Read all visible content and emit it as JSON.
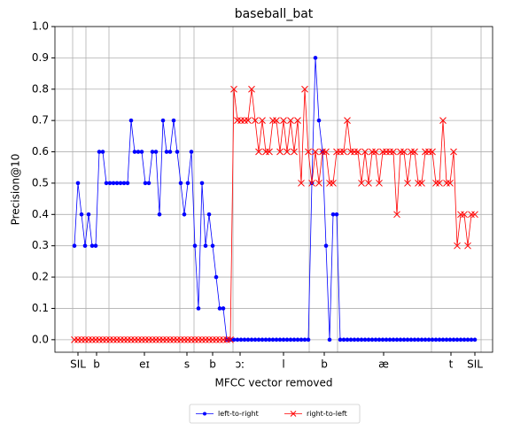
{
  "chart_data": {
    "type": "line",
    "title": "baseball_bat",
    "xlabel": "MFCC vector removed",
    "ylabel": "Precision@10",
    "x": [
      0,
      1,
      2,
      3,
      4,
      5,
      6,
      7,
      8,
      9,
      10,
      11,
      12,
      13,
      14,
      15,
      16,
      17,
      18,
      19,
      20,
      21,
      22,
      23,
      24,
      25,
      26,
      27,
      28,
      29,
      30,
      31,
      32,
      33,
      34,
      35,
      36,
      37,
      38,
      39,
      40,
      41,
      42,
      43,
      44,
      45,
      46,
      47,
      48,
      49,
      50,
      51,
      52,
      53,
      54,
      55,
      56,
      57,
      58,
      59,
      60,
      61,
      62,
      63,
      64,
      65,
      66,
      67,
      68,
      69,
      70,
      71,
      72,
      73,
      74,
      75,
      76,
      77,
      78,
      79,
      80,
      81,
      82,
      83,
      84,
      85,
      86,
      87,
      88,
      89,
      90,
      91,
      92,
      93,
      94,
      95,
      96,
      97,
      98,
      99,
      100,
      101,
      102,
      103,
      104,
      105,
      106,
      107,
      108,
      109,
      110,
      111,
      112,
      113
    ],
    "series": [
      {
        "name": "left-to-right",
        "color": "#0000ff",
        "marker": "dot",
        "values": [
          0.3,
          0.5,
          0.4,
          0.3,
          0.4,
          0.3,
          0.3,
          0.6,
          0.6,
          0.5,
          0.5,
          0.5,
          0.5,
          0.5,
          0.5,
          0.5,
          0.7,
          0.6,
          0.6,
          0.6,
          0.5,
          0.5,
          0.6,
          0.6,
          0.4,
          0.7,
          0.6,
          0.6,
          0.7,
          0.6,
          0.5,
          0.4,
          0.5,
          0.6,
          0.3,
          0.1,
          0.5,
          0.3,
          0.4,
          0.3,
          0.2,
          0.1,
          0.1,
          0,
          0,
          0,
          0,
          0,
          0,
          0,
          0,
          0,
          0,
          0,
          0,
          0,
          0,
          0,
          0,
          0,
          0,
          0,
          0,
          0,
          0,
          0,
          0,
          0.5,
          0.9,
          0.7,
          0.6,
          0.3,
          0,
          0.4,
          0.4,
          0,
          0,
          0,
          0,
          0,
          0,
          0,
          0,
          0,
          0,
          0,
          0,
          0,
          0,
          0,
          0,
          0,
          0,
          0,
          0,
          0,
          0,
          0,
          0,
          0,
          0,
          0,
          0,
          0,
          0,
          0,
          0,
          0,
          0,
          0,
          0,
          0,
          0,
          0
        ]
      },
      {
        "name": "right-to-left",
        "color": "#ff0000",
        "marker": "x",
        "values": [
          0,
          0,
          0,
          0,
          0,
          0,
          0,
          0,
          0,
          0,
          0,
          0,
          0,
          0,
          0,
          0,
          0,
          0,
          0,
          0,
          0,
          0,
          0,
          0,
          0,
          0,
          0,
          0,
          0,
          0,
          0,
          0,
          0,
          0,
          0,
          0,
          0,
          0,
          0,
          0,
          0,
          0,
          0,
          0,
          0,
          0.8,
          0.7,
          0.7,
          0.7,
          0.7,
          0.8,
          0.7,
          0.6,
          0.7,
          0.6,
          0.6,
          0.7,
          0.7,
          0.6,
          0.7,
          0.6,
          0.7,
          0.6,
          0.7,
          0.5,
          0.8,
          0.6,
          0.5,
          0.6,
          0.5,
          0.6,
          0.6,
          0.5,
          0.5,
          0.6,
          0.6,
          0.6,
          0.7,
          0.6,
          0.6,
          0.6,
          0.5,
          0.6,
          0.5,
          0.6,
          0.6,
          0.5,
          0.6,
          0.6,
          0.6,
          0.6,
          0.4,
          0.6,
          0.6,
          0.5,
          0.6,
          0.6,
          0.5,
          0.5,
          0.6,
          0.6,
          0.6,
          0.5,
          0.5,
          0.7,
          0.5,
          0.5,
          0.6,
          0.3,
          0.4,
          0.4,
          0.3,
          0.4,
          0.4
        ]
      }
    ],
    "xlim": [
      -5.5,
      118
    ],
    "xticks": [
      {
        "value": 1,
        "label": "SIL"
      },
      {
        "value": 6.25,
        "label": "b"
      },
      {
        "value": 19.75,
        "label": "eɪ"
      },
      {
        "value": 31.75,
        "label": "s"
      },
      {
        "value": 39,
        "label": "b"
      },
      {
        "value": 46.75,
        "label": "ɔː"
      },
      {
        "value": 59,
        "label": "l"
      },
      {
        "value": 70.5,
        "label": "b"
      },
      {
        "value": 87.25,
        "label": "æ"
      },
      {
        "value": 106.25,
        "label": "t"
      },
      {
        "value": 113,
        "label": "SIL"
      }
    ],
    "x_boundaries": [
      -0.5,
      3.25,
      9.75,
      29.75,
      33.75,
      44.75,
      66.25,
      74.25,
      100.75,
      114.75
    ],
    "ylim": [
      -0.04,
      1.0
    ],
    "yticks": [
      {
        "value": 0,
        "label": "0.0"
      },
      0.1,
      0.2,
      0.3,
      0.4,
      0.5,
      0.6,
      0.7,
      0.8,
      0.9,
      {
        "value": 1,
        "label": "1.0"
      }
    ],
    "grid": true,
    "legend": "below"
  }
}
